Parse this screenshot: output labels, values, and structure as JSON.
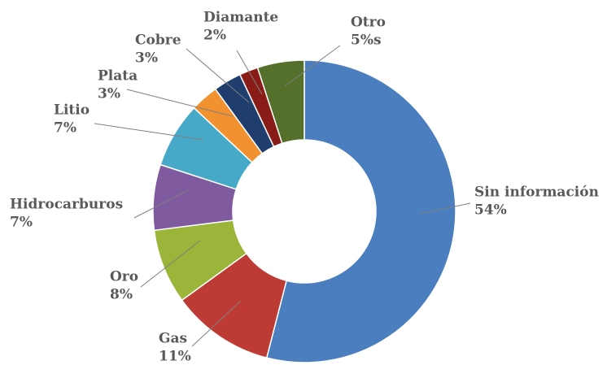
{
  "chart_data": {
    "type": "donut",
    "categories": [
      "Sin información",
      "Gas",
      "Oro",
      "Hidrocarburos",
      "Litio",
      "Plata",
      "Cobre",
      "Diamante",
      "Otro"
    ],
    "values": [
      54,
      11,
      8,
      7,
      7,
      3,
      3,
      2,
      5
    ],
    "value_labels": [
      "54%",
      "11%",
      "8%",
      "7%",
      "7%",
      "3%",
      "3%",
      "2%",
      "5%s"
    ],
    "colors": [
      "#4a7ebf",
      "#be3b35",
      "#9bb53a",
      "#7f5a9f",
      "#46a9c7",
      "#f2912f",
      "#1f3e6e",
      "#8a1c17",
      "#55702a"
    ]
  }
}
